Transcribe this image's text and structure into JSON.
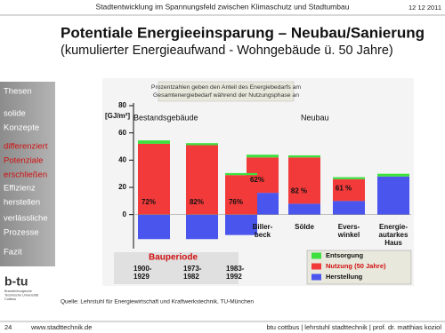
{
  "header": {
    "topic": "Stadtentwicklung im Spannungsfeld zwischen Klimaschutz und Stadtumbau",
    "date": "12 12 2011"
  },
  "title": "Potentiale Energieeinsparung – Neubau/Sanierung",
  "subtitle": "(kumulierter Energieaufwand - Wohngebäude ü. 50 Jahre)",
  "nav": [
    {
      "lines": [
        "Thesen"
      ],
      "active": false
    },
    {
      "lines": [
        "solide",
        "Konzepte"
      ],
      "active": false
    },
    {
      "lines": [
        "differenziert",
        "Potenziale",
        "erschließen"
      ],
      "active": true
    },
    {
      "lines": [
        "Effizienz",
        "herstellen"
      ],
      "active": false
    },
    {
      "lines": [
        "verlässliche",
        "Prozesse"
      ],
      "active": false
    },
    {
      "lines": [
        "Fazit"
      ],
      "active": false
    }
  ],
  "logo": {
    "mark": "b-tu",
    "lines": [
      "Brandenburgische",
      "Technische Universität",
      "Cottbus"
    ]
  },
  "source": "Quelle: Lehrstuhl für Energiewirtschaft und Kraftwerkstechnik, TU-München",
  "footer": {
    "page": "24",
    "url": "www.stadttechnik.de",
    "credit": "btu cottbus  |  lehrstuhl stadttechnik  |  prof. dr. matthias koziol"
  },
  "chart_data": {
    "type": "bar",
    "stacked": true,
    "note": [
      "Prozentzahlen geben den Anteil des Energiebedarfs am",
      "Gesamtenergiebedarf während der Nutzungsphase an"
    ],
    "y_label": "[GJ/m²]",
    "groups": [
      "Bestandsgebäude",
      "Neubau"
    ],
    "period_label": "Bauperiode",
    "categories": [
      [
        "1900-",
        "1929"
      ],
      [
        "1973-",
        "1982"
      ],
      [
        "1983-",
        "1992"
      ],
      [
        "Biller-",
        "beck"
      ],
      [
        "Sölde"
      ],
      [
        "Evers-",
        "winkel"
      ],
      [
        "Energie-",
        "autarkes",
        "Haus"
      ]
    ],
    "shares": [
      "72%",
      "82%",
      "76%",
      "62%",
      "82 %",
      "61 %",
      null
    ],
    "series": [
      {
        "name": "Herstellung",
        "color": "#4a55ee",
        "values": [
          -18,
          -18,
          -15,
          16,
          8,
          10,
          28
        ]
      },
      {
        "name": "Nutzung (50 Jahre)",
        "color": "#f23a3a",
        "values": [
          52,
          51,
          29,
          26,
          34,
          16,
          0
        ]
      },
      {
        "name": "Entsorgung",
        "color": "#3ee03e",
        "values": [
          2.5,
          1.5,
          1.5,
          2,
          1.5,
          1.5,
          2
        ]
      }
    ],
    "ylim": [
      -25,
      80
    ],
    "yticks": [
      0,
      20,
      40,
      60,
      80
    ]
  }
}
